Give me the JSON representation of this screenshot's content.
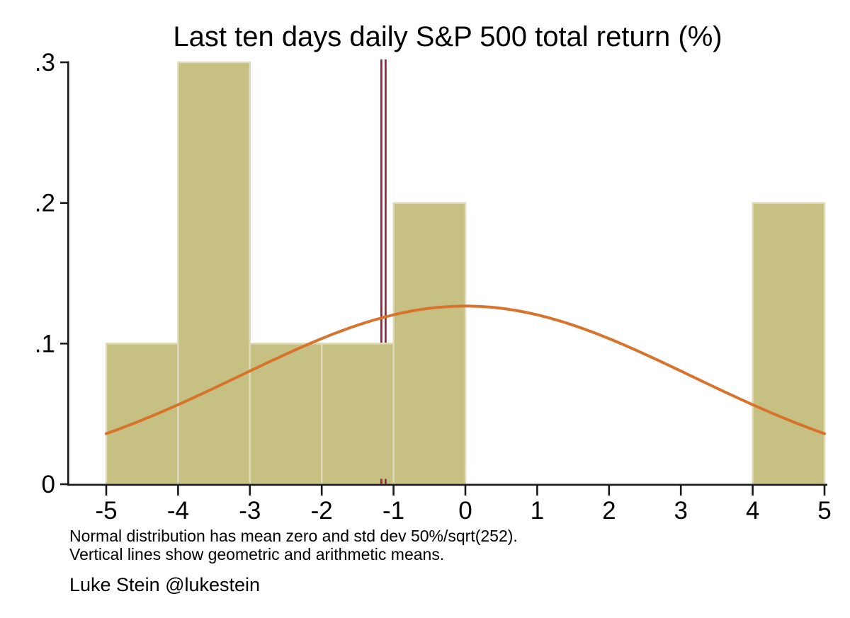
{
  "figure": {
    "title": "Last ten days daily S&P 500 total return (%)",
    "notes": [
      "Normal distribution has mean zero and std dev 50%/sqrt(252).",
      "Vertical lines show geometric and arithmetic means."
    ],
    "attribution": "Luke Stein @lukestein"
  },
  "colors": {
    "background": "#ffffff",
    "bar_fill": "#c6c082",
    "bar_edge": "#dfdbba",
    "curve": "#d8732e",
    "vline": "#96293f",
    "axis": "#1a1a1a",
    "text": "#000000"
  },
  "chart_data": {
    "type": "bar",
    "subtype": "histogram-with-normal-curve",
    "title": "Last ten days daily S&P 500 total return (%)",
    "xlabel": "",
    "ylabel": "",
    "bins": [
      {
        "x0": -5,
        "x1": -4,
        "density": 0.1
      },
      {
        "x0": -4,
        "x1": -3,
        "density": 0.3
      },
      {
        "x0": -3,
        "x1": -2,
        "density": 0.1
      },
      {
        "x0": -2,
        "x1": -1,
        "density": 0.1
      },
      {
        "x0": -1,
        "x1": 0,
        "density": 0.2
      },
      {
        "x0": 0,
        "x1": 1,
        "density": 0.0
      },
      {
        "x0": 1,
        "x1": 2,
        "density": 0.0
      },
      {
        "x0": 2,
        "x1": 3,
        "density": 0.0
      },
      {
        "x0": 3,
        "x1": 4,
        "density": 0.0
      },
      {
        "x0": 4,
        "x1": 5,
        "density": 0.2
      }
    ],
    "normal_curve": {
      "mean": 0,
      "sd": 3.1497,
      "sd_expression": "50%/sqrt(252)",
      "x_range": [
        -5,
        5
      ],
      "peak_density": 0.1267
    },
    "vlines": [
      {
        "x": -1.17,
        "label": "geometric mean"
      },
      {
        "x": -1.11,
        "label": "arithmetic mean"
      }
    ],
    "x_ticks": [
      -5,
      -4,
      -3,
      -2,
      -1,
      0,
      1,
      2,
      3,
      4,
      5
    ],
    "y_ticks": [
      {
        "value": 0.0,
        "label": "0"
      },
      {
        "value": 0.1,
        "label": ".1"
      },
      {
        "value": 0.2,
        "label": ".2"
      },
      {
        "value": 0.3,
        "label": ".3"
      }
    ],
    "xlim": [
      -5,
      5
    ],
    "ylim": [
      0,
      0.3
    ],
    "grid": false,
    "legend": null
  }
}
